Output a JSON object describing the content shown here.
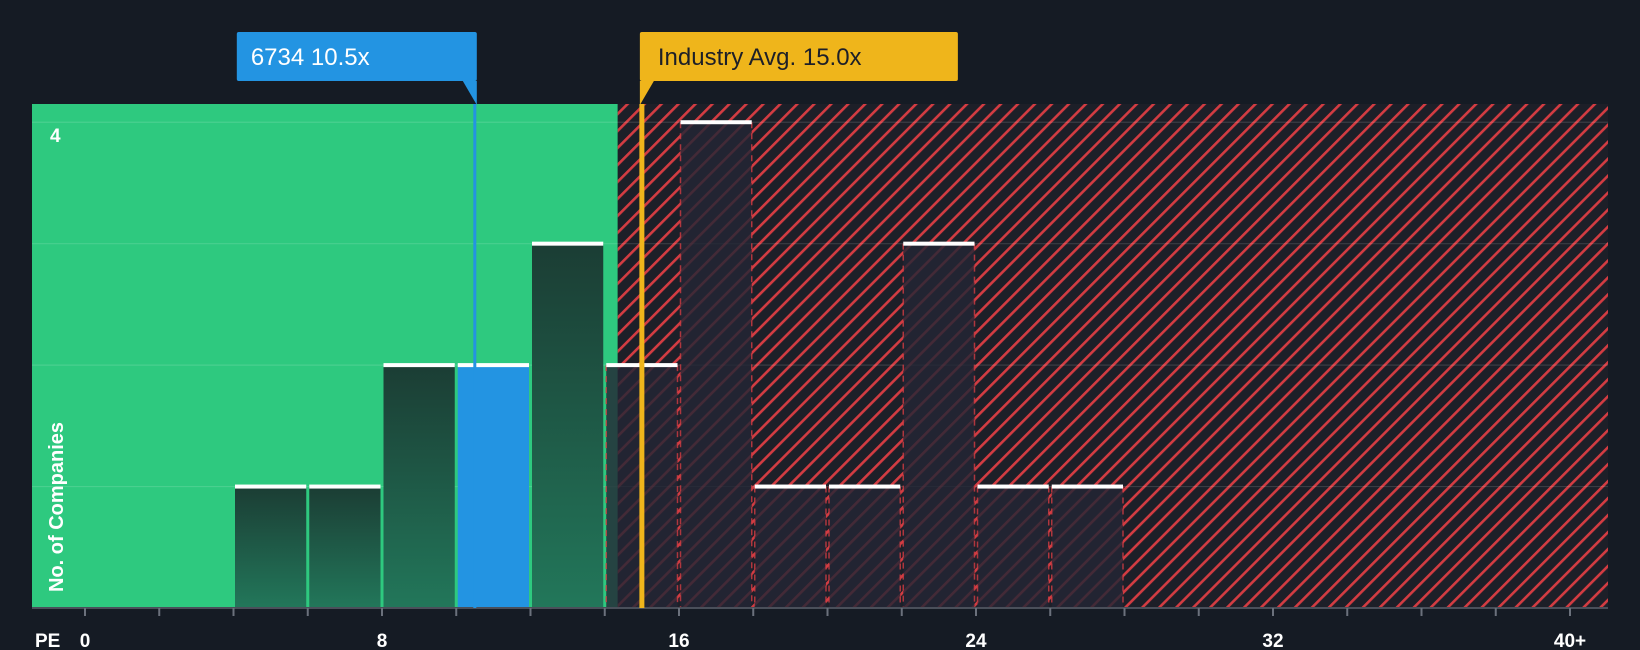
{
  "chart_data": {
    "type": "bar",
    "x_axis_label": "PE",
    "y_axis_label": "No. of Companies",
    "x_ticks": [
      "0",
      "8",
      "16",
      "24",
      "32",
      "40+"
    ],
    "y_ticks": [
      "4"
    ],
    "xlim": [
      -0.25,
      40.5
    ],
    "ylim": [
      0,
      4.15
    ],
    "bin_width": 2,
    "bins": [
      {
        "start": 4,
        "end": 6,
        "count": 1
      },
      {
        "start": 6,
        "end": 8,
        "count": 1
      },
      {
        "start": 8,
        "end": 10,
        "count": 2
      },
      {
        "start": 10,
        "end": 12,
        "count": 2,
        "highlight": true
      },
      {
        "start": 12,
        "end": 14,
        "count": 3
      },
      {
        "start": 14,
        "end": 16,
        "count": 2
      },
      {
        "start": 16,
        "end": 18,
        "count": 4
      },
      {
        "start": 18,
        "end": 20,
        "count": 1
      },
      {
        "start": 20,
        "end": 22,
        "count": 1
      },
      {
        "start": 22,
        "end": 24,
        "count": 3
      },
      {
        "start": 24,
        "end": 26,
        "count": 1
      },
      {
        "start": 26,
        "end": 28,
        "count": 1
      }
    ],
    "company": {
      "ticker": "6734",
      "label": "6734 10.5x",
      "value": 10.5
    },
    "industry_average": {
      "label": "Industry Avg. 15.0x",
      "value": 15.0
    },
    "fair_zone_end": 14.35,
    "colors": {
      "background": "#151b24",
      "fair_zone": "#2ec97f",
      "overvalued_stripe": "#d33c42",
      "company": "#2394e2",
      "industry": "#efb51b",
      "bar_top": "#ffffff"
    }
  }
}
